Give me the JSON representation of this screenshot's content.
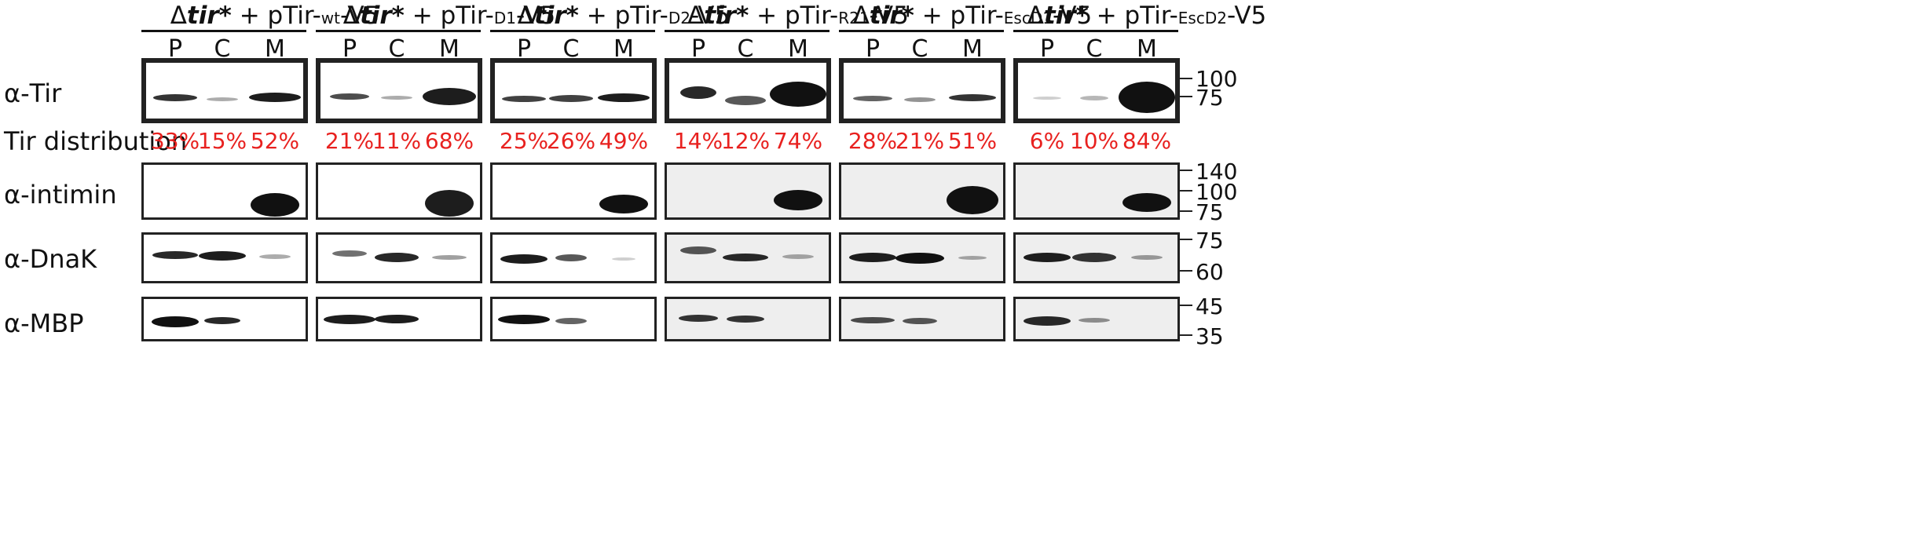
{
  "groups": [
    {
      "prefix": "Δ",
      "strain": "tir*",
      "plus": " + pTir-",
      "variant": "wt",
      "suffix": "-V5"
    },
    {
      "prefix": "Δ",
      "strain": "tir*",
      "plus": " + pTir-",
      "variant": "D1",
      "suffix": "-V5"
    },
    {
      "prefix": "Δ",
      "strain": "tir*",
      "plus": " + pTir-",
      "variant": "D2",
      "suffix": "-V5"
    },
    {
      "prefix": "Δ",
      "strain": "tir*",
      "plus": " + pTir-",
      "variant": "R21",
      "suffix": "-V5"
    },
    {
      "prefix": "Δ",
      "strain": "tir*",
      "plus": " + pTir-",
      "variant": "EscD1",
      "suffix": "-V5"
    },
    {
      "prefix": "Δ",
      "strain": "tir*",
      "plus": " + pTir-",
      "variant": "EscD2",
      "suffix": "-V5"
    }
  ],
  "lanes": [
    "P",
    "C",
    "M"
  ],
  "row_labels": {
    "tir": "α-Tir",
    "distribution": "Tir distribution",
    "intimin": "α-intimin",
    "dnak": "α-DnaK",
    "mbp": "α-MBP"
  },
  "distribution": [
    [
      "33%",
      "15%",
      "52%"
    ],
    [
      "21%",
      "11%",
      "68%"
    ],
    [
      "25%",
      "26%",
      "49%"
    ],
    [
      "14%",
      "12%",
      "74%"
    ],
    [
      "28%",
      "21%",
      "51%"
    ],
    [
      "6%",
      "10%",
      "84%"
    ]
  ],
  "mw_markers": {
    "tir": [
      "100",
      "75"
    ],
    "intimin": [
      "140",
      "100",
      "75"
    ],
    "dnak": [
      "75",
      "60"
    ],
    "mbp": [
      "45",
      "35"
    ]
  },
  "colors": {
    "percent": "#e8211f",
    "frame": "#222222",
    "band": "#111111"
  }
}
